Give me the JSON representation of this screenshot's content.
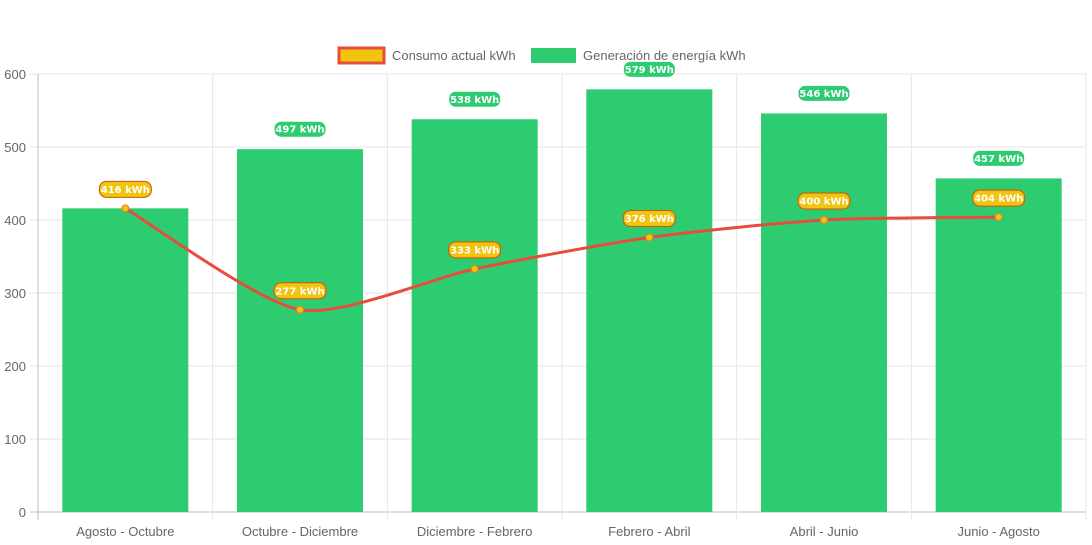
{
  "chart_data": {
    "type": "bar",
    "title": "",
    "xlabel": "",
    "ylabel": "",
    "ylim": [
      0,
      600
    ],
    "yticks": [
      "0",
      "100",
      "200",
      "300",
      "400",
      "500",
      "600"
    ],
    "grid": true,
    "legend_position": "top-center",
    "categories": [
      "Agosto - Octubre",
      "Octubre - Diciembre",
      "Diciembre - Febrero",
      "Febrero - Abril",
      "Abril - Junio",
      "Junio - Agosto"
    ],
    "series": [
      {
        "name": "Consumo actual kWh",
        "type": "line",
        "color": "#e74c3c",
        "marker_color": "#f1c40f",
        "values": [
          416,
          277,
          333,
          376,
          400,
          404
        ],
        "labels": [
          "416 kWh",
          "277 kWh",
          "333 kWh",
          "376 kWh",
          "400 kWh",
          "404 kWh"
        ]
      },
      {
        "name": "Generación de energía kWh",
        "type": "bar",
        "color": "#2ecc71",
        "values": [
          416,
          497,
          538,
          579,
          546,
          457
        ],
        "labels": [
          "416 kWh",
          "497 kWh",
          "538 kWh",
          "579 kWh",
          "546 kWh",
          "457 kWh"
        ]
      }
    ]
  }
}
